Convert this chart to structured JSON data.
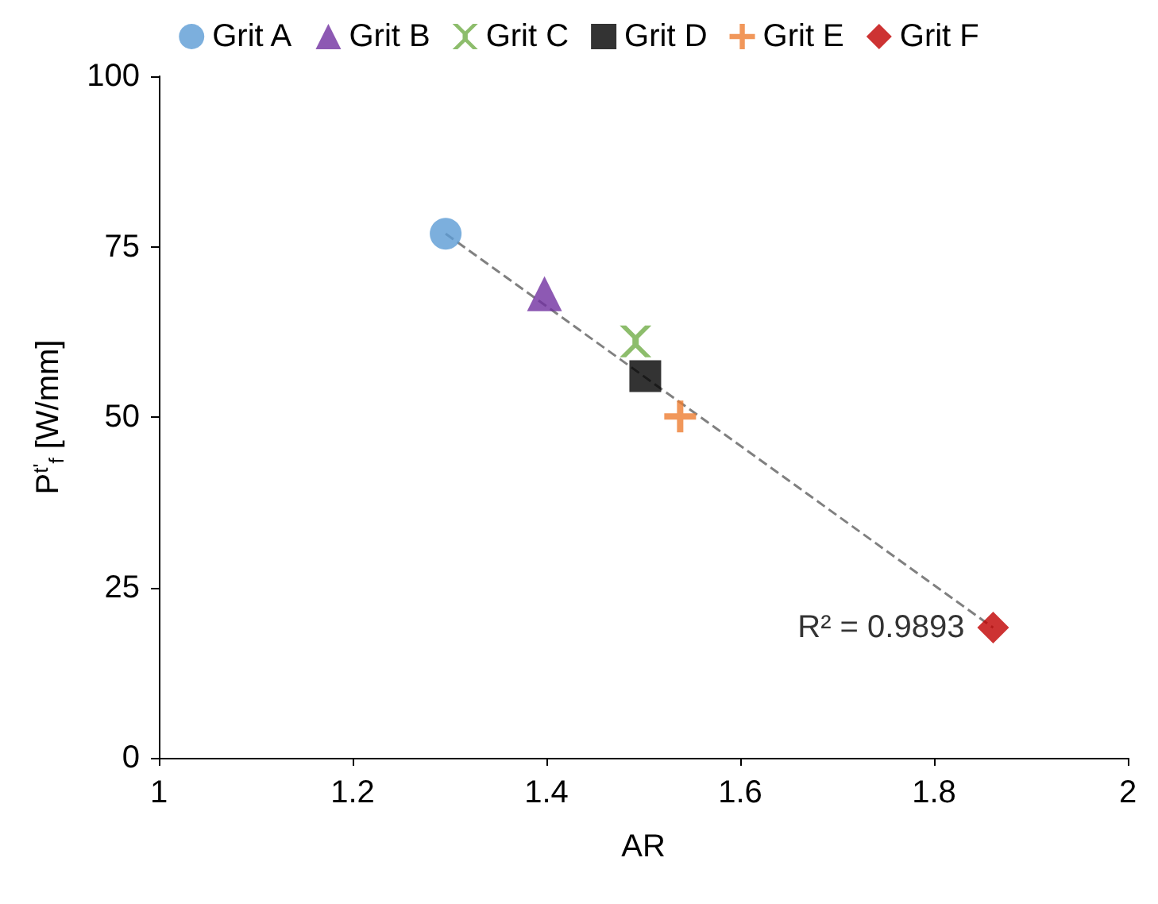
{
  "chart_data": {
    "type": "scatter",
    "xlabel": "AR",
    "ylabel": "P$^{t'}$$_{f}$ [W/mm]",
    "xlim": [
      1,
      2
    ],
    "xticks": [
      1,
      1.2,
      1.4,
      1.6,
      1.8,
      2
    ],
    "ylim": [
      0,
      100
    ],
    "yticks": [
      0,
      25,
      50,
      75,
      100
    ],
    "grid": false,
    "legend": "top",
    "series": [
      {
        "name": "Grit A",
        "color": "#5b9bd5",
        "marker": "circle",
        "x": [
          1.296
        ],
        "values": [
          76.9
        ]
      },
      {
        "name": "Grit B",
        "color": "#7030a0",
        "marker": "triangle",
        "x": [
          1.398
        ],
        "values": [
          68.1
        ]
      },
      {
        "name": "Grit C",
        "color": "#70ad47",
        "marker": "cross",
        "x": [
          1.492
        ],
        "values": [
          61.1
        ]
      },
      {
        "name": "Grit D",
        "color": "#000000",
        "marker": "square",
        "x": [
          1.502
        ],
        "values": [
          56.0
        ]
      },
      {
        "name": "Grit E",
        "color": "#ed7d31",
        "marker": "plus",
        "x": [
          1.538
        ],
        "values": [
          50.1
        ]
      },
      {
        "name": "Grit F",
        "color": "#c00000",
        "marker": "diamond",
        "x": [
          1.861
        ],
        "values": [
          19.1
        ]
      },
      {
        "type": "line",
        "color": "#808080",
        "line_style": "dashed",
        "marker": "none",
        "x": [
          1.296,
          1.861
        ],
        "values": [
          76.9,
          19.1
        ]
      }
    ],
    "annotations": [
      {
        "text": "R² = 0.9893",
        "x": 1.861,
        "y": 19.1
      }
    ]
  }
}
